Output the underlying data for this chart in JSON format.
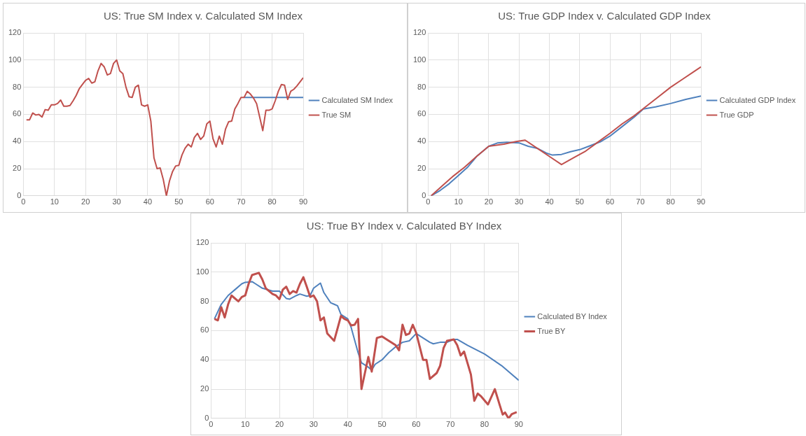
{
  "chart_data": [
    {
      "type": "line",
      "title": "US: True SM Index v. Calculated SM Index",
      "xlim": [
        0,
        90
      ],
      "xticks": [
        0,
        10,
        20,
        30,
        40,
        50,
        60,
        70,
        80,
        90
      ],
      "ylim": [
        0,
        120
      ],
      "yticks": [
        0,
        20,
        40,
        60,
        80,
        100,
        120
      ],
      "grid": true,
      "legend": "right",
      "marker": "none",
      "series": [
        {
          "name": "Calculated SM Index",
          "color": "#4f81bd",
          "x": [
            71,
            90
          ],
          "values": [
            72.5,
            72.5
          ]
        },
        {
          "name": "True SM",
          "color": "#c0504d",
          "x": [
            1,
            2,
            3,
            4,
            5,
            6,
            7,
            8,
            9,
            10,
            11,
            12,
            13,
            14,
            15,
            16,
            17,
            18,
            19,
            20,
            21,
            22,
            23,
            24,
            25,
            26,
            27,
            28,
            29,
            30,
            31,
            32,
            33,
            34,
            35,
            36,
            37,
            38,
            39,
            40,
            41,
            42,
            43,
            44,
            45,
            46,
            47,
            48,
            49,
            50,
            51,
            52,
            53,
            54,
            55,
            56,
            57,
            58,
            59,
            60,
            61,
            62,
            63,
            64,
            65,
            66,
            67,
            68,
            69,
            70,
            71,
            72,
            73,
            74,
            75,
            76,
            77,
            78,
            79,
            80,
            81,
            82,
            83,
            84,
            85,
            86,
            87,
            88,
            89,
            90
          ],
          "values": [
            56,
            56,
            61,
            59.5,
            60,
            58,
            63.5,
            63,
            67,
            67,
            68,
            70.5,
            66,
            66,
            66.5,
            70,
            74,
            79,
            82,
            85,
            86.5,
            83,
            84,
            92,
            97.5,
            95,
            89,
            90,
            97.5,
            100,
            92,
            90,
            80,
            73,
            72.5,
            80,
            81.5,
            67,
            66,
            67,
            55,
            28,
            20,
            20.5,
            12,
            0,
            11,
            18,
            22,
            22.5,
            30,
            35,
            38,
            36,
            43,
            46,
            41.5,
            44,
            53,
            55,
            42,
            36,
            44,
            38,
            49,
            54.5,
            55,
            64,
            68,
            72.5,
            72.5,
            77,
            75,
            72,
            68,
            58,
            48,
            63,
            63,
            64,
            70,
            77,
            82,
            81.5,
            71,
            77,
            78.5,
            81,
            84,
            87
          ]
        }
      ]
    },
    {
      "type": "line",
      "title": "US: True GDP Index v. Calculated GDP Index",
      "xlim": [
        0,
        90
      ],
      "xticks": [
        0,
        10,
        20,
        30,
        40,
        50,
        60,
        70,
        80,
        90
      ],
      "ylim": [
        0,
        120
      ],
      "yticks": [
        0,
        20,
        40,
        60,
        80,
        100,
        120
      ],
      "grid": true,
      "legend": "right",
      "marker": "none",
      "series": [
        {
          "name": "Calculated GDP Index",
          "color": "#4f81bd",
          "x": [
            1,
            4,
            7,
            10,
            13,
            16,
            20,
            23,
            26,
            30,
            33,
            36,
            39,
            41,
            44,
            47,
            50,
            53,
            57,
            60,
            64,
            68,
            71,
            75,
            80,
            85,
            90
          ],
          "values": [
            0,
            4,
            9,
            15,
            21,
            29,
            36.5,
            39,
            39.5,
            39,
            36.5,
            35,
            31.5,
            30,
            30.5,
            32.5,
            34,
            36.5,
            40,
            44,
            51,
            58,
            64,
            65.5,
            68,
            71,
            73.5
          ]
        },
        {
          "name": "True GDP",
          "color": "#c0504d",
          "x": [
            1,
            5,
            8,
            12,
            16,
            20,
            25,
            29,
            32,
            36,
            40,
            44,
            48,
            52,
            56,
            60,
            64,
            68,
            72,
            76,
            80,
            84,
            88,
            90
          ],
          "values": [
            0,
            8,
            14,
            21,
            29,
            36.5,
            38,
            40,
            41,
            35,
            29,
            23,
            28,
            33,
            39.5,
            46,
            53,
            59,
            66,
            73,
            80,
            86,
            92,
            95
          ]
        }
      ]
    },
    {
      "type": "line",
      "title": "US: True BY Index v. Calculated BY Index",
      "xlim": [
        0,
        90
      ],
      "xticks": [
        0,
        10,
        20,
        30,
        40,
        50,
        60,
        70,
        80,
        90
      ],
      "ylim": [
        0,
        120
      ],
      "yticks": [
        0,
        20,
        40,
        60,
        80,
        100,
        120
      ],
      "grid": true,
      "legend": "right",
      "marker": "none",
      "series": [
        {
          "name": "Calculated BY Index",
          "color": "#4f81bd",
          "x": [
            1,
            3,
            5,
            7,
            9,
            10,
            12,
            13,
            15,
            18,
            20,
            22,
            23,
            25,
            26,
            28,
            29,
            30,
            32,
            33,
            35,
            36,
            37,
            38,
            40,
            41,
            43,
            44,
            46,
            47,
            48,
            50,
            52,
            54,
            56,
            58,
            60,
            62,
            64,
            65,
            67,
            69,
            71,
            72,
            75,
            80,
            85,
            90
          ],
          "values": [
            68,
            78,
            84,
            88,
            92,
            93,
            93.5,
            92,
            89,
            87,
            87,
            82,
            81.5,
            84,
            85,
            83.5,
            84,
            89,
            92.5,
            86,
            79,
            78,
            77,
            71,
            68,
            62,
            45,
            38,
            35,
            33,
            37,
            40,
            45,
            49,
            52,
            53,
            58,
            55,
            52,
            51,
            52,
            52,
            54,
            54,
            50,
            44,
            36,
            26
          ]
        },
        {
          "name": "True BY",
          "color": "#c0504d",
          "x": [
            1,
            2,
            3,
            4,
            5,
            6,
            8,
            9,
            10,
            11,
            12,
            14,
            15,
            16,
            18,
            19,
            20,
            21,
            22,
            23,
            24,
            25,
            26,
            27,
            28,
            29,
            30,
            31,
            32,
            33,
            34,
            36,
            38,
            39,
            40,
            41,
            42,
            43,
            44,
            46,
            47,
            48.5,
            50,
            52,
            54,
            55,
            56,
            57,
            58,
            59,
            60,
            62,
            63,
            64,
            66,
            67,
            68,
            69,
            71,
            72,
            73,
            74,
            76,
            77,
            78,
            79,
            81,
            83,
            84.5,
            85.3,
            86,
            87,
            88,
            89.4
          ],
          "values": [
            68,
            67,
            76,
            69,
            78,
            84,
            80,
            83,
            84,
            92,
            98,
            99.5,
            95,
            89,
            85,
            84,
            81.5,
            88,
            90,
            85,
            87,
            86,
            92,
            96.5,
            90,
            83,
            84,
            80,
            67,
            69,
            58,
            53,
            70,
            68,
            67,
            63.5,
            64,
            68,
            20,
            42,
            32,
            55,
            56,
            53,
            50,
            46.5,
            64,
            57,
            58,
            64,
            58.5,
            40,
            40,
            27,
            31,
            36,
            48,
            53,
            54,
            50,
            43,
            45.7,
            30,
            12,
            17,
            15,
            9.5,
            20,
            8.6,
            2.6,
            4,
            0,
            3,
            4.3
          ]
        }
      ]
    }
  ]
}
